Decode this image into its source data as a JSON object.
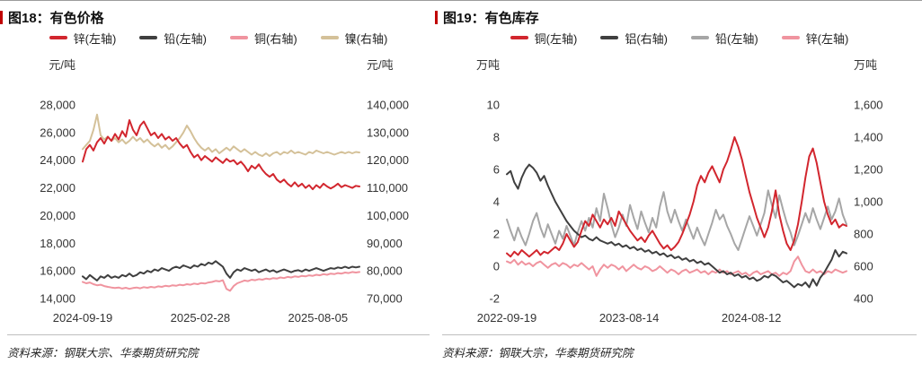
{
  "chart_data": [
    {
      "type": "line",
      "title": "图18：有色价格",
      "unit_left": "元/吨",
      "unit_right": "元/吨",
      "left_axis": {
        "min": 14000,
        "max": 28000,
        "ticks": [
          [
            28000,
            "28,000"
          ],
          [
            26000,
            "26,000"
          ],
          [
            24000,
            "24,000"
          ],
          [
            22000,
            "22,000"
          ],
          [
            20000,
            "20,000"
          ],
          [
            18000,
            "18,000"
          ],
          [
            16000,
            "16,000"
          ],
          [
            14000,
            "14,000"
          ]
        ]
      },
      "right_axis": {
        "min": 70000,
        "max": 140000,
        "ticks": [
          [
            140000,
            "140,000"
          ],
          [
            130000,
            "130,000"
          ],
          [
            120000,
            "120,000"
          ],
          [
            110000,
            "110,000"
          ],
          [
            100000,
            "100,000"
          ],
          [
            90000,
            "90,000"
          ],
          [
            80000,
            "80,000"
          ],
          [
            70000,
            "70,000"
          ]
        ]
      },
      "x_ticks": [
        [
          0,
          "2024-09-19"
        ],
        [
          0.425,
          "2025-02-28"
        ],
        [
          0.85,
          "2025-08-05"
        ]
      ],
      "series": [
        {
          "key": "zinc",
          "name": "锌(左轴)",
          "axis": "left",
          "color": "#d2262e",
          "values": [
            23900,
            24800,
            25100,
            24700,
            25300,
            25600,
            25200,
            25700,
            25400,
            25900,
            25500,
            26100,
            25700,
            26900,
            26200,
            25800,
            26500,
            26800,
            26300,
            25800,
            26000,
            25600,
            25900,
            25500,
            25700,
            25400,
            25600,
            25200,
            24900,
            25100,
            24600,
            24200,
            24400,
            24000,
            24300,
            24100,
            23900,
            24200,
            24000,
            23800,
            24100,
            23900,
            24000,
            23700,
            23900,
            23600,
            23200,
            23600,
            23400,
            23700,
            23300,
            23000,
            22800,
            23000,
            22600,
            22400,
            22600,
            22300,
            22100,
            22400,
            22100,
            22300,
            22000,
            22200,
            21900,
            22200,
            22000,
            22300,
            22100,
            21950,
            22100,
            22300,
            22050,
            22200,
            22100,
            22000,
            22150,
            22100
          ]
        },
        {
          "key": "lead",
          "name": "铅(左轴)",
          "axis": "left",
          "color": "#3f3f3f",
          "values": [
            15600,
            15400,
            15700,
            15500,
            15300,
            15600,
            15500,
            15700,
            15500,
            15600,
            15500,
            15700,
            15600,
            15800,
            15600,
            15700,
            15900,
            15800,
            16000,
            15900,
            16100,
            16000,
            16200,
            16100,
            16000,
            16200,
            16300,
            16200,
            16400,
            16300,
            16200,
            16400,
            16300,
            16500,
            16400,
            16600,
            16500,
            16700,
            16500,
            16300,
            15800,
            15500,
            15900,
            16100,
            16000,
            16200,
            16100,
            16000,
            16100,
            15900,
            16000,
            16100,
            15950,
            16050,
            15900,
            16000,
            16100,
            16000,
            15900,
            16000,
            16050,
            15950,
            16100,
            16000,
            16100,
            16200,
            16100,
            16000,
            16100,
            16200,
            16150,
            16250,
            16200,
            16300,
            16200,
            16300,
            16250,
            16300
          ]
        },
        {
          "key": "copper",
          "name": "铜(右轴)",
          "axis": "right",
          "color": "#f0949f",
          "values": [
            76000,
            75500,
            75800,
            75200,
            74800,
            75000,
            74500,
            74200,
            74000,
            73800,
            74000,
            73600,
            73900,
            73500,
            73800,
            74000,
            73700,
            74100,
            73900,
            74200,
            74000,
            74400,
            74200,
            74600,
            74400,
            74800,
            74600,
            75000,
            74800,
            75200,
            75000,
            75400,
            75200,
            75600,
            75400,
            75800,
            76000,
            76400,
            76200,
            76600,
            73500,
            72800,
            74500,
            75500,
            76000,
            76500,
            76300,
            76800,
            76600,
            77000,
            76800,
            77200,
            77000,
            77400,
            77200,
            77600,
            77400,
            77800,
            77600,
            78000,
            77800,
            78200,
            78000,
            78400,
            78200,
            78600,
            78400,
            78800,
            78600,
            79000,
            78800,
            79200,
            79000,
            79400,
            79200,
            79600,
            79400,
            79600
          ]
        },
        {
          "key": "nickel",
          "name": "镍(右轴)",
          "axis": "right",
          "color": "#d4c199",
          "values": [
            124000,
            125500,
            127000,
            131000,
            136500,
            129000,
            127500,
            128500,
            127000,
            128000,
            126500,
            127500,
            126000,
            127000,
            128500,
            127000,
            128000,
            126500,
            127500,
            126000,
            125000,
            126000,
            124500,
            125500,
            124000,
            125000,
            126500,
            128000,
            130000,
            132500,
            130500,
            128000,
            126000,
            124500,
            123500,
            124500,
            123000,
            124000,
            122500,
            123500,
            124500,
            123500,
            125000,
            124000,
            123000,
            124000,
            123000,
            122000,
            123000,
            122000,
            121500,
            122500,
            121500,
            122500,
            123000,
            122000,
            123000,
            122500,
            123500,
            122500,
            123000,
            122500,
            122000,
            123000,
            122500,
            123500,
            123000,
            122500,
            123000,
            122500,
            122000,
            122500,
            123000,
            122500,
            123000,
            122500,
            123000,
            122800
          ]
        }
      ],
      "source": "资料来源：钢联大宗、华泰期货研究院"
    },
    {
      "type": "line",
      "title": "图19：有色库存",
      "unit_left": "万吨",
      "unit_right": "万吨",
      "left_axis": {
        "min": -2,
        "max": 10,
        "ticks": [
          [
            10,
            "10"
          ],
          [
            8,
            "8"
          ],
          [
            6,
            "6"
          ],
          [
            4,
            "4"
          ],
          [
            2,
            "2"
          ],
          [
            0,
            "0"
          ],
          [
            -2,
            "-2"
          ]
        ]
      },
      "right_axis": {
        "min": 400,
        "max": 1600,
        "ticks": [
          [
            1600,
            "1,600"
          ],
          [
            1400,
            "1,400"
          ],
          [
            1200,
            "1,200"
          ],
          [
            1000,
            "1,000"
          ],
          [
            800,
            "800"
          ],
          [
            600,
            "600"
          ],
          [
            400,
            "400"
          ]
        ]
      },
      "x_ticks": [
        [
          0,
          "2022-09-19"
        ],
        [
          0.36,
          "2023-08-14"
        ],
        [
          0.72,
          "2024-08-12"
        ]
      ],
      "series": [
        {
          "key": "copper",
          "name": "铜(左轴)",
          "axis": "left",
          "color": "#d2262e",
          "values": [
            0.8,
            0.6,
            0.9,
            0.7,
            1.0,
            0.8,
            0.6,
            0.8,
            1.0,
            0.7,
            0.9,
            0.8,
            1.0,
            1.2,
            1.0,
            1.4,
            2.0,
            1.6,
            1.2,
            1.5,
            2.2,
            2.8,
            2.5,
            3.2,
            2.8,
            2.4,
            2.9,
            2.6,
            3.0,
            2.5,
            3.4,
            3.0,
            2.6,
            2.2,
            1.9,
            1.6,
            1.8,
            1.5,
            1.9,
            2.2,
            1.8,
            1.4,
            1.1,
            1.3,
            1.0,
            1.2,
            1.5,
            2.0,
            2.6,
            3.2,
            4.0,
            5.0,
            5.6,
            5.2,
            5.8,
            6.2,
            5.7,
            5.2,
            6.0,
            6.5,
            7.2,
            8.0,
            7.4,
            6.6,
            5.6,
            4.6,
            3.8,
            3.0,
            2.4,
            1.8,
            2.4,
            3.4,
            4.7,
            3.2,
            2.2,
            1.4,
            1.0,
            1.6,
            2.6,
            4.0,
            5.5,
            6.8,
            7.3,
            6.4,
            5.2,
            4.0,
            3.2,
            2.6,
            2.9,
            2.4,
            2.6,
            2.5
          ]
        },
        {
          "key": "aluminum",
          "name": "铝(右轴)",
          "axis": "right",
          "color": "#3f3f3f",
          "values": [
            1170,
            1190,
            1120,
            1080,
            1150,
            1200,
            1230,
            1210,
            1180,
            1130,
            1160,
            1100,
            1050,
            1000,
            960,
            920,
            880,
            850,
            820,
            800,
            780,
            790,
            770,
            760,
            780,
            760,
            750,
            740,
            750,
            730,
            740,
            720,
            730,
            710,
            720,
            700,
            710,
            690,
            700,
            680,
            690,
            670,
            680,
            660,
            670,
            650,
            660,
            640,
            650,
            630,
            640,
            620,
            630,
            610,
            620,
            600,
            580,
            560,
            570,
            550,
            560,
            540,
            550,
            530,
            540,
            520,
            530,
            510,
            520,
            540,
            530,
            550,
            540,
            520,
            500,
            510,
            490,
            470,
            490,
            480,
            500,
            470,
            520,
            480,
            530,
            560,
            600,
            640,
            700,
            660,
            690,
            680
          ]
        },
        {
          "key": "lead",
          "name": "铅(左轴)",
          "axis": "left",
          "color": "#a6a6a6",
          "values": [
            2.9,
            2.2,
            1.6,
            2.4,
            1.8,
            1.3,
            2.0,
            2.8,
            3.3,
            2.4,
            1.8,
            2.6,
            2.0,
            1.4,
            2.2,
            1.7,
            2.5,
            1.9,
            1.3,
            2.1,
            2.8,
            2.2,
            3.0,
            2.4,
            3.6,
            2.8,
            4.5,
            3.6,
            2.6,
            1.8,
            2.4,
            3.2,
            2.5,
            3.8,
            3.0,
            2.3,
            3.4,
            2.7,
            2.1,
            3.0,
            2.4,
            3.7,
            4.6,
            3.4,
            2.7,
            3.5,
            2.8,
            2.2,
            2.9,
            2.3,
            1.7,
            2.4,
            1.8,
            1.3,
            2.0,
            2.7,
            3.5,
            2.9,
            3.2,
            2.5,
            2.0,
            1.4,
            1.0,
            1.7,
            2.4,
            3.1,
            2.5,
            1.9,
            2.6,
            3.3,
            4.7,
            3.8,
            3.0,
            4.4,
            3.5,
            2.7,
            2.1,
            1.3,
            1.9,
            2.6,
            3.3,
            2.7,
            3.6,
            2.9,
            2.3,
            3.0,
            3.7,
            2.9,
            3.4,
            4.2,
            3.2,
            2.6
          ]
        },
        {
          "key": "zinc",
          "name": "锌(左轴)",
          "axis": "left",
          "color": "#f0949f",
          "values": [
            0.3,
            0.2,
            0.4,
            0.1,
            0.3,
            0.1,
            0.2,
            0.0,
            0.2,
            0.3,
            0.1,
            -0.1,
            0.1,
            0.2,
            0.0,
            0.2,
            0.1,
            -0.1,
            0.1,
            0.0,
            0.2,
            0.0,
            -0.2,
            0.0,
            -0.6,
            -0.2,
            0.1,
            -0.1,
            0.1,
            0.0,
            -0.2,
            0.0,
            -0.3,
            -0.1,
            0.1,
            -0.1,
            -0.2,
            0.0,
            -0.1,
            -0.3,
            -0.2,
            0.0,
            -0.2,
            -0.4,
            -0.2,
            -0.3,
            -0.5,
            -0.3,
            -0.2,
            -0.4,
            -0.3,
            -0.2,
            -0.4,
            -0.3,
            -0.5,
            -0.3,
            -0.4,
            -0.2,
            -0.4,
            -0.3,
            -0.5,
            -0.4,
            -0.3,
            -0.5,
            -0.4,
            -0.6,
            -0.4,
            -0.3,
            -0.5,
            -0.4,
            -0.3,
            -0.5,
            -0.4,
            -0.6,
            -0.4,
            -0.5,
            -0.3,
            0.3,
            0.6,
            0.1,
            -0.3,
            -0.4,
            -0.2,
            -0.4,
            -0.3,
            -0.5,
            -0.3,
            -0.4,
            -0.2,
            -0.3,
            -0.4,
            -0.3
          ]
        }
      ],
      "source": "资料来源：钢联大宗，华泰期货研究院"
    }
  ]
}
